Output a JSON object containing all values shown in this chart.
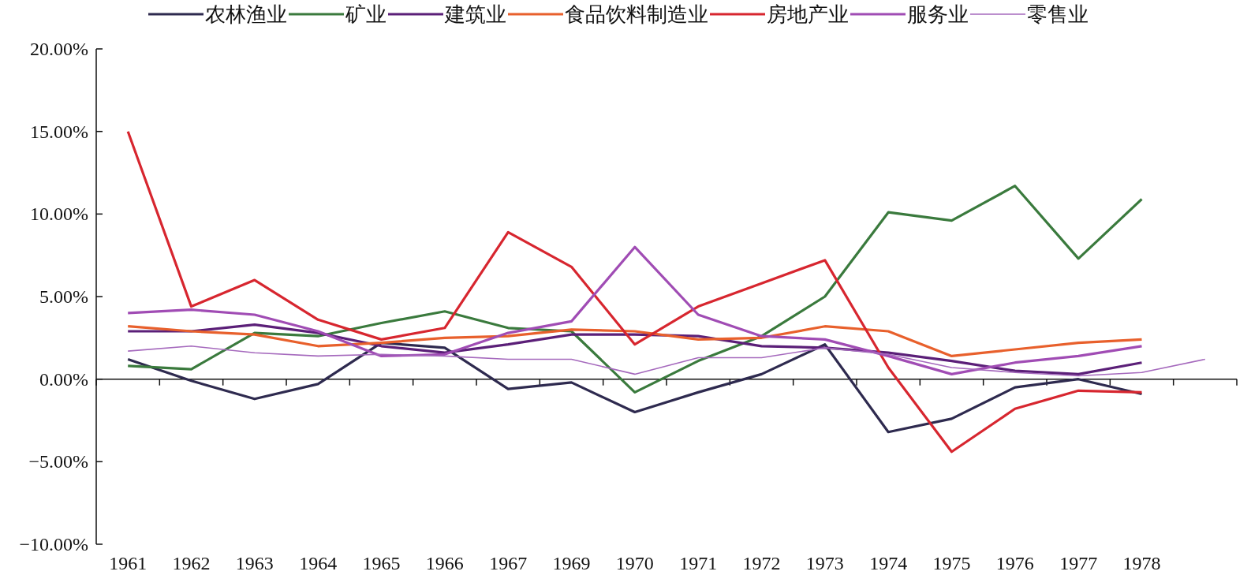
{
  "chart_data": {
    "type": "line",
    "categories": [
      "1961",
      "1962",
      "1963",
      "1964",
      "1965",
      "1966",
      "1967",
      "1969",
      "1970",
      "1971",
      "1972",
      "1973",
      "1974",
      "1975",
      "1976",
      "1977",
      "1978",
      null
    ],
    "ylim": [
      -10,
      20
    ],
    "yticks": [
      {
        "value": -10,
        "label": "−10.00%"
      },
      {
        "value": -5,
        "label": "−5.00%"
      },
      {
        "value": 0,
        "label": "0.00%"
      },
      {
        "value": 5,
        "label": "5.00%"
      },
      {
        "value": 10,
        "label": "10.00%"
      },
      {
        "value": 15,
        "label": "15.00%"
      },
      {
        "value": 20,
        "label": "20.00%"
      }
    ],
    "legend": "top",
    "series": [
      {
        "name": "农林渔业",
        "color": "#2e2a4f",
        "values": [
          1.2,
          -0.1,
          -1.2,
          -0.3,
          2.2,
          1.9,
          -0.6,
          -0.2,
          -2.0,
          -0.8,
          0.3,
          2.1,
          -3.2,
          -2.4,
          -0.5,
          0.0,
          -0.9,
          null
        ]
      },
      {
        "name": "矿业",
        "color": "#3a7a3d",
        "values": [
          0.8,
          0.6,
          2.8,
          2.6,
          3.4,
          4.1,
          3.1,
          2.9,
          -0.8,
          1.1,
          2.6,
          5.0,
          10.1,
          9.6,
          11.7,
          7.3,
          10.9,
          null
        ]
      },
      {
        "name": "建筑业",
        "color": "#5b1f78",
        "values": [
          2.9,
          2.9,
          3.3,
          2.8,
          2.0,
          1.6,
          2.1,
          2.7,
          2.7,
          2.6,
          2.0,
          1.9,
          1.6,
          1.1,
          0.5,
          0.3,
          1.0,
          null
        ]
      },
      {
        "name": "食品饮料制造业",
        "color": "#e8602c",
        "values": [
          3.2,
          2.9,
          2.7,
          2.0,
          2.2,
          2.5,
          2.6,
          3.0,
          2.9,
          2.4,
          2.5,
          3.2,
          2.9,
          1.4,
          1.8,
          2.2,
          2.4,
          null
        ]
      },
      {
        "name": "房地产业",
        "color": "#d7262f",
        "values": [
          15.0,
          4.4,
          6.0,
          3.6,
          2.4,
          3.1,
          8.9,
          6.8,
          2.1,
          4.4,
          5.8,
          7.2,
          0.7,
          -4.4,
          -1.8,
          -0.7,
          -0.8,
          null
        ]
      },
      {
        "name": "服务业",
        "color": "#a04cb4",
        "values": [
          4.0,
          4.2,
          3.9,
          2.9,
          1.4,
          1.5,
          2.8,
          3.5,
          8.0,
          3.9,
          2.6,
          2.4,
          1.4,
          0.3,
          1.0,
          1.4,
          2.0,
          null
        ]
      },
      {
        "name": "零售业",
        "color": "#a569bd",
        "values": [
          1.7,
          2.0,
          1.6,
          1.4,
          1.5,
          1.4,
          1.2,
          1.2,
          0.3,
          1.3,
          1.3,
          1.9,
          1.5,
          0.7,
          0.4,
          0.2,
          0.4,
          1.2
        ]
      }
    ]
  }
}
